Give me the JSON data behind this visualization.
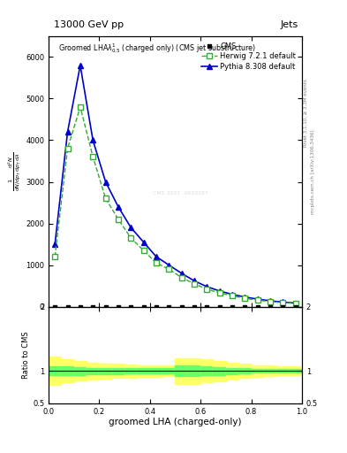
{
  "title_top": "13000 GeV pp",
  "title_right": "Jets",
  "watermark": "mcplots.cern.ch [arXiv:1306.3436]",
  "rivet_label": "Rivet 3.1.10, ≥ 3.3M events",
  "cms_label": "CMS",
  "herwig_label": "Herwig 7.2.1 default",
  "pythia_label": "Pythia 8.308 default",
  "xlabel": "groomed LHA (charged-only)",
  "ratio_ylabel": "Ratio to CMS",
  "herwig_x": [
    0.025,
    0.075,
    0.125,
    0.175,
    0.225,
    0.275,
    0.325,
    0.375,
    0.425,
    0.475,
    0.525,
    0.575,
    0.625,
    0.675,
    0.725,
    0.775,
    0.825,
    0.875,
    0.925,
    0.975
  ],
  "herwig_y": [
    1200,
    3800,
    4800,
    3600,
    2600,
    2100,
    1650,
    1350,
    1050,
    900,
    700,
    550,
    420,
    330,
    260,
    200,
    155,
    120,
    95,
    75
  ],
  "pythia_x": [
    0.025,
    0.075,
    0.125,
    0.175,
    0.225,
    0.275,
    0.325,
    0.375,
    0.425,
    0.475,
    0.525,
    0.575,
    0.625,
    0.675,
    0.725,
    0.775,
    0.825,
    0.875,
    0.925,
    0.975
  ],
  "pythia_y": [
    1500,
    4200,
    5800,
    4000,
    3000,
    2400,
    1900,
    1550,
    1200,
    1000,
    800,
    620,
    480,
    375,
    295,
    230,
    180,
    140,
    108,
    85
  ],
  "ylim": [
    0,
    6500
  ],
  "xlim": [
    0,
    1
  ],
  "ratio_ylim": [
    0.5,
    2.0
  ],
  "herwig_color": "#33aa33",
  "pythia_color": "#0000cc",
  "cms_color": "#000000",
  "green_band_lower": [
    0.93,
    0.93,
    0.94,
    0.95,
    0.95,
    0.95,
    0.96,
    0.96,
    0.96,
    0.96,
    0.92,
    0.92,
    0.93,
    0.94,
    0.95,
    0.96,
    0.97,
    0.97,
    0.97,
    0.97
  ],
  "green_band_upper": [
    1.07,
    1.07,
    1.06,
    1.05,
    1.05,
    1.05,
    1.04,
    1.04,
    1.04,
    1.04,
    1.08,
    1.08,
    1.07,
    1.06,
    1.05,
    1.04,
    1.03,
    1.03,
    1.03,
    1.03
  ],
  "yellow_band_lower": [
    0.78,
    0.82,
    0.85,
    0.87,
    0.88,
    0.89,
    0.9,
    0.91,
    0.91,
    0.92,
    0.8,
    0.8,
    0.82,
    0.84,
    0.87,
    0.89,
    0.91,
    0.92,
    0.93,
    0.93
  ],
  "yellow_band_upper": [
    1.22,
    1.18,
    1.15,
    1.13,
    1.12,
    1.11,
    1.1,
    1.09,
    1.09,
    1.08,
    1.2,
    1.2,
    1.18,
    1.16,
    1.13,
    1.11,
    1.09,
    1.08,
    1.07,
    1.07
  ],
  "band_x_edges": [
    0.0,
    0.05,
    0.1,
    0.15,
    0.2,
    0.25,
    0.3,
    0.35,
    0.4,
    0.45,
    0.5,
    0.55,
    0.6,
    0.65,
    0.7,
    0.75,
    0.8,
    0.85,
    0.9,
    0.95,
    1.0
  ]
}
